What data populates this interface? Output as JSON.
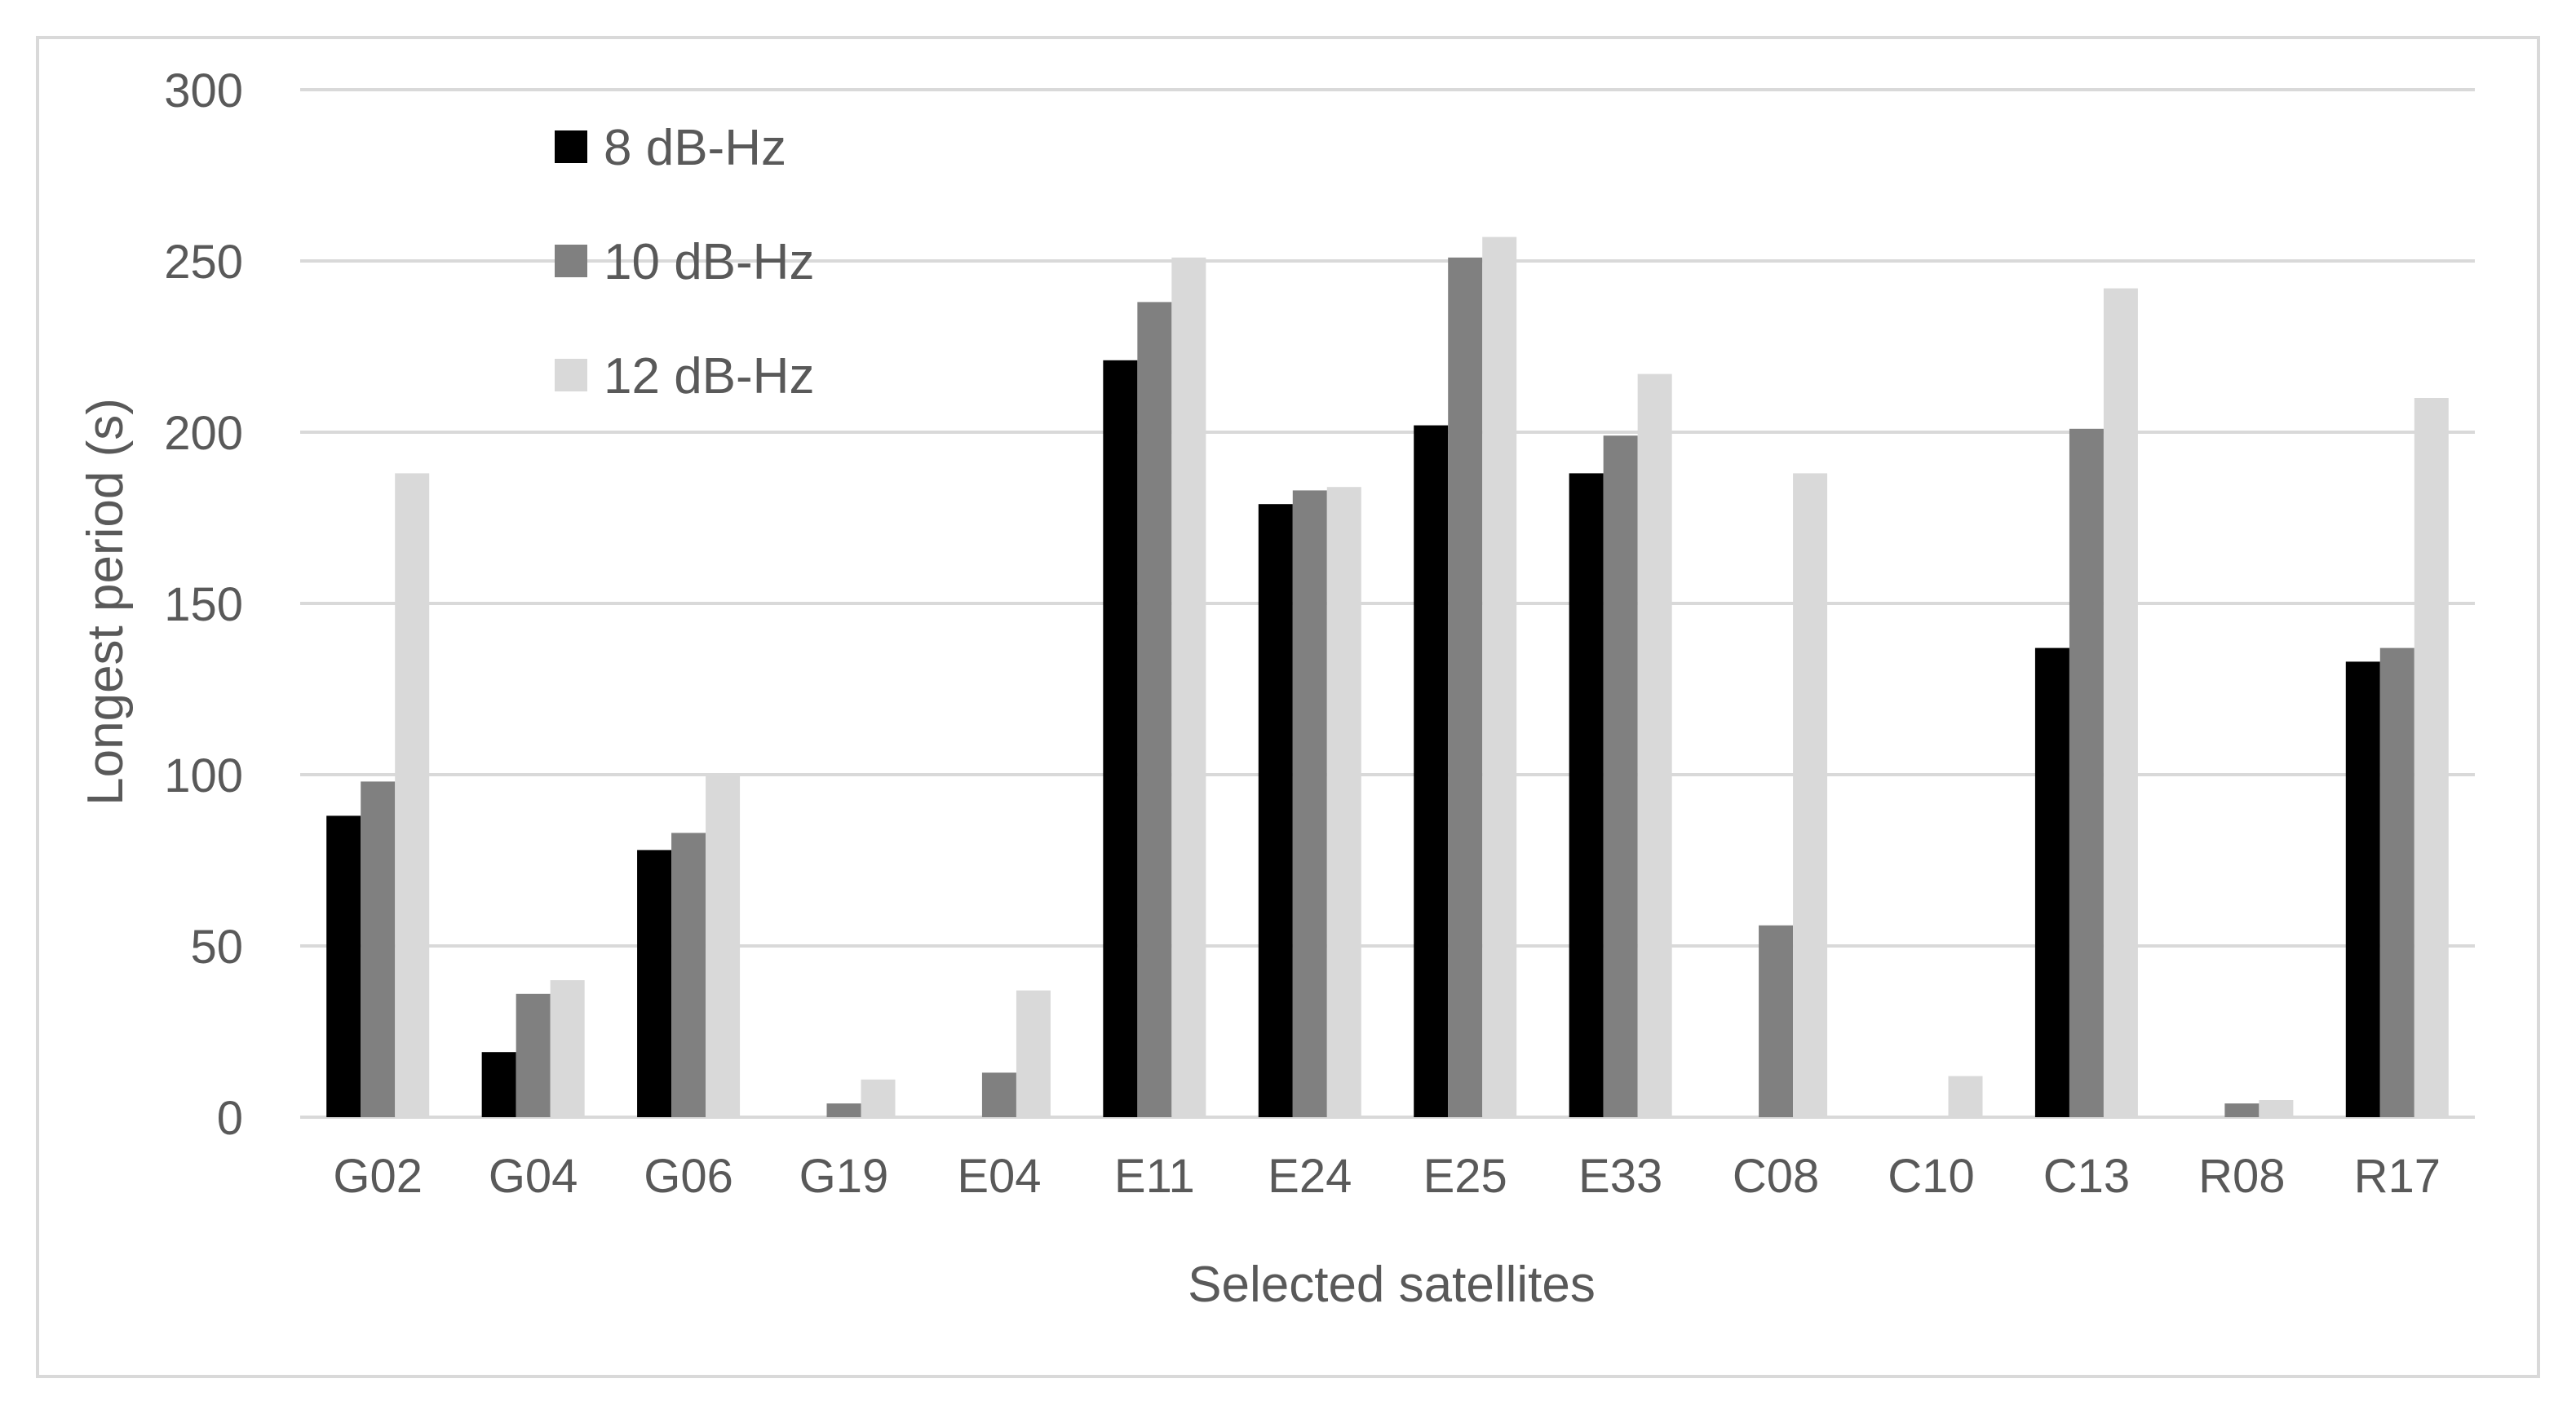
{
  "chart_data": {
    "type": "bar",
    "title": "",
    "xlabel": "Selected satellites",
    "ylabel": "Longest period (s)",
    "ylim": [
      0,
      300
    ],
    "yticks": [
      0,
      50,
      100,
      150,
      200,
      250,
      300
    ],
    "grid": true,
    "legend_position": "top-left",
    "categories": [
      "G02",
      "G04",
      "G06",
      "G19",
      "E04",
      "E11",
      "E24",
      "E25",
      "E33",
      "C08",
      "C10",
      "C13",
      "R08",
      "R17"
    ],
    "series": [
      {
        "name": "8 dB-Hz",
        "color": "#000000",
        "values": [
          88,
          19,
          78,
          0,
          0,
          221,
          179,
          202,
          188,
          0,
          0,
          137,
          0,
          133
        ]
      },
      {
        "name": "10 dB-Hz",
        "color": "#808080",
        "values": [
          98,
          36,
          83,
          4,
          13,
          238,
          183,
          251,
          199,
          56,
          0,
          201,
          4,
          137
        ]
      },
      {
        "name": "12 dB-Hz",
        "color": "#d9d9d9",
        "values": [
          188,
          40,
          100,
          11,
          37,
          251,
          184,
          257,
          217,
          188,
          12,
          242,
          5,
          210
        ]
      }
    ]
  }
}
